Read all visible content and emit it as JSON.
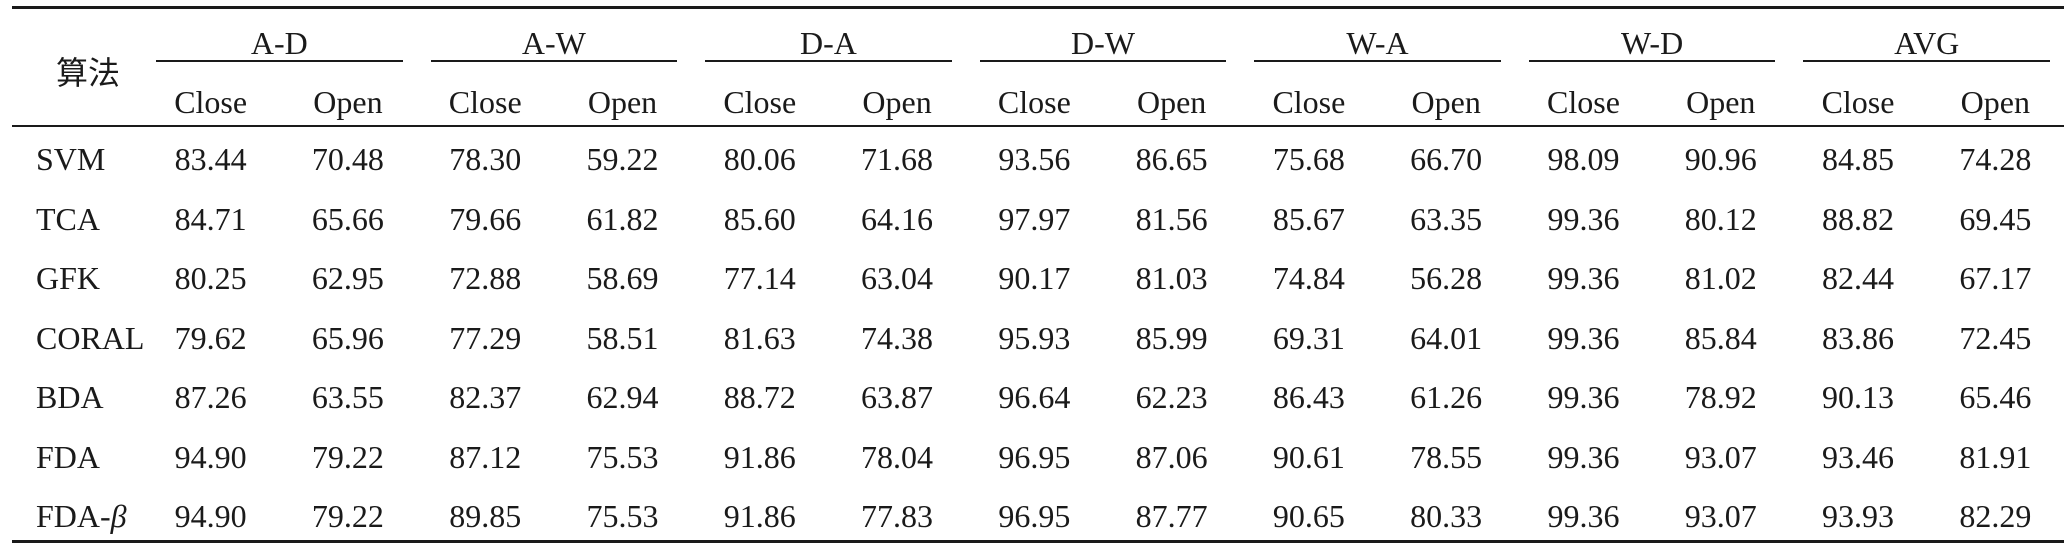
{
  "table": {
    "algo_header": "算法",
    "groups": [
      "A-D",
      "A-W",
      "D-A",
      "D-W",
      "W-A",
      "W-D",
      "AVG"
    ],
    "sub_headers": [
      "Close",
      "Open"
    ],
    "rows": [
      {
        "name": "SVM",
        "values": [
          "83.44",
          "70.48",
          "78.30",
          "59.22",
          "80.06",
          "71.68",
          "93.56",
          "86.65",
          "75.68",
          "66.70",
          "98.09",
          "90.96",
          "84.85",
          "74.28"
        ]
      },
      {
        "name": "TCA",
        "values": [
          "84.71",
          "65.66",
          "79.66",
          "61.82",
          "85.60",
          "64.16",
          "97.97",
          "81.56",
          "85.67",
          "63.35",
          "99.36",
          "80.12",
          "88.82",
          "69.45"
        ]
      },
      {
        "name": "GFK",
        "values": [
          "80.25",
          "62.95",
          "72.88",
          "58.69",
          "77.14",
          "63.04",
          "90.17",
          "81.03",
          "74.84",
          "56.28",
          "99.36",
          "81.02",
          "82.44",
          "67.17"
        ]
      },
      {
        "name": "CORAL",
        "values": [
          "79.62",
          "65.96",
          "77.29",
          "58.51",
          "81.63",
          "74.38",
          "95.93",
          "85.99",
          "69.31",
          "64.01",
          "99.36",
          "85.84",
          "83.86",
          "72.45"
        ]
      },
      {
        "name": "BDA",
        "values": [
          "87.26",
          "63.55",
          "82.37",
          "62.94",
          "88.72",
          "63.87",
          "96.64",
          "62.23",
          "86.43",
          "61.26",
          "99.36",
          "78.92",
          "90.13",
          "65.46"
        ]
      },
      {
        "name": "FDA",
        "values": [
          "94.90",
          "79.22",
          "87.12",
          "75.53",
          "91.86",
          "78.04",
          "96.95",
          "87.06",
          "90.61",
          "78.55",
          "99.36",
          "93.07",
          "93.46",
          "81.91"
        ]
      },
      {
        "name": "FDA-",
        "name_suffix": "β",
        "values": [
          "94.90",
          "79.22",
          "89.85",
          "75.53",
          "91.86",
          "77.83",
          "96.95",
          "87.77",
          "90.65",
          "80.33",
          "99.36",
          "93.07",
          "93.93",
          "82.29"
        ]
      }
    ]
  }
}
